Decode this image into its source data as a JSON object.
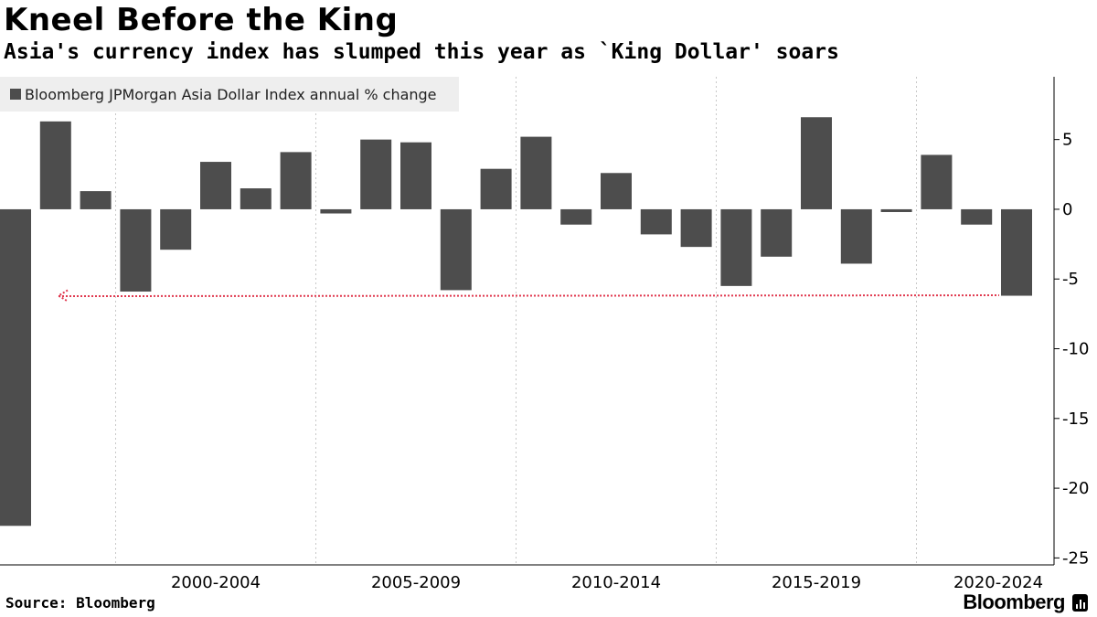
{
  "header": {
    "title": "Kneel Before the King",
    "subtitle": "Asia's currency index has slumped this year as `King Dollar' soars"
  },
  "legend": {
    "label": "Bloomberg JPMorgan Asia Dollar Index annual % change",
    "color": "#4d4d4d"
  },
  "footer": {
    "source": "Source: Bloomberg",
    "brand": "Bloomberg"
  },
  "chart_data": {
    "type": "bar",
    "series": [
      {
        "name": "Bloomberg JPMorgan Asia Dollar Index annual % change",
        "color": "#4d4d4d",
        "points": [
          {
            "year": 1997,
            "value": -22.7
          },
          {
            "year": 1998,
            "value": 6.3
          },
          {
            "year": 1999,
            "value": 1.3
          },
          {
            "year": 2000,
            "value": -5.9
          },
          {
            "year": 2001,
            "value": -2.9
          },
          {
            "year": 2002,
            "value": 3.4
          },
          {
            "year": 2003,
            "value": 1.5
          },
          {
            "year": 2004,
            "value": 4.1
          },
          {
            "year": 2005,
            "value": -0.3
          },
          {
            "year": 2006,
            "value": 5.0
          },
          {
            "year": 2007,
            "value": 4.8
          },
          {
            "year": 2008,
            "value": -5.8
          },
          {
            "year": 2009,
            "value": 2.9
          },
          {
            "year": 2010,
            "value": 5.2
          },
          {
            "year": 2011,
            "value": -1.1
          },
          {
            "year": 2012,
            "value": 2.6
          },
          {
            "year": 2013,
            "value": -1.8
          },
          {
            "year": 2014,
            "value": -2.7
          },
          {
            "year": 2015,
            "value": -5.5
          },
          {
            "year": 2016,
            "value": -3.4
          },
          {
            "year": 2017,
            "value": 6.6
          },
          {
            "year": 2018,
            "value": -3.9
          },
          {
            "year": 2019,
            "value": -0.2
          },
          {
            "year": 2020,
            "value": 3.9
          },
          {
            "year": 2021,
            "value": -1.1
          },
          {
            "year": 2022,
            "value": -6.2
          }
        ]
      }
    ],
    "x_tick_labels": [
      "2000-2004",
      "2005-2009",
      "2010-2014",
      "2015-2019",
      "2020-2024"
    ],
    "y_ticks": [
      5,
      0,
      -5,
      -10,
      -15,
      -20,
      -25
    ],
    "y_tick_labels": [
      "5",
      "0",
      "-5",
      "-10",
      "-15",
      "-20",
      "-25"
    ],
    "ylim": [
      -25.5,
      9.5
    ],
    "y_axis_side": "right",
    "grid": "vertical dotted lines at 5-year period boundaries",
    "reference_line": {
      "value": -6.2,
      "style": "red dotted arrow pointing left",
      "color": "#e0394f"
    }
  }
}
